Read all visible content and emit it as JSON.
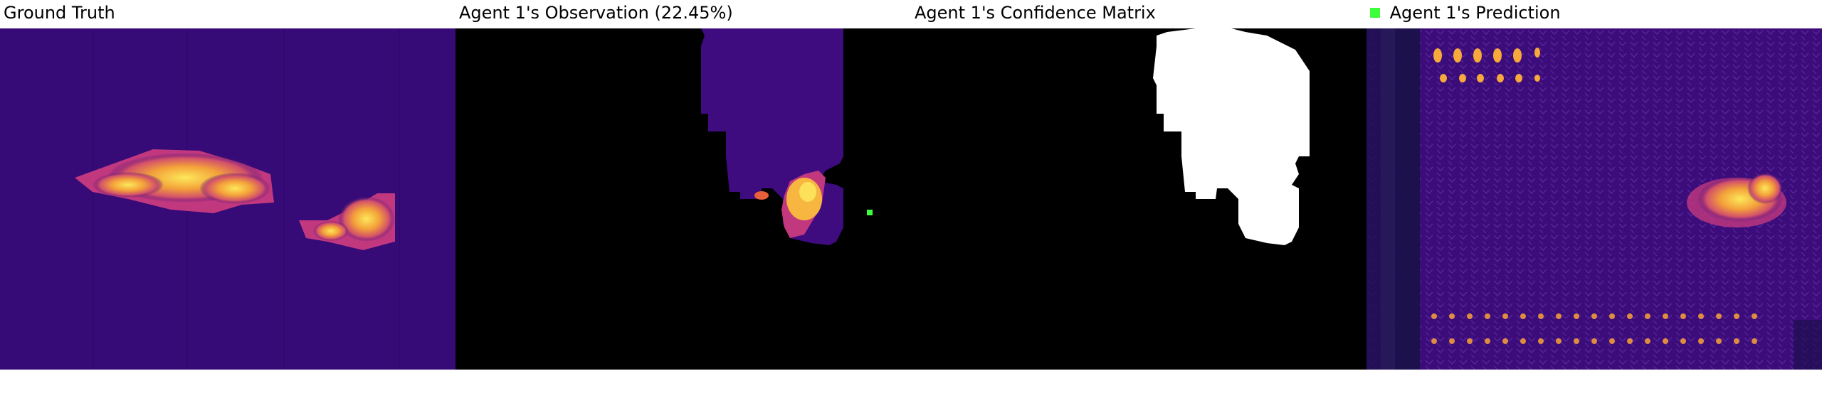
{
  "panels": [
    {
      "title": "Ground Truth"
    },
    {
      "title": "Agent 1's Observation (22.45%)"
    },
    {
      "title": "Agent 1's Confidence Matrix"
    },
    {
      "title": "Agent 1's Prediction"
    }
  ],
  "legend": {
    "agent_marker_color": "#3cff3c"
  },
  "colors": {
    "background_plasma": "#3a0a78",
    "hot": "#f9c440",
    "warm": "#e8603a",
    "magenta": "#b52d8a",
    "mask": "#000000",
    "confidence": "#ffffff"
  }
}
